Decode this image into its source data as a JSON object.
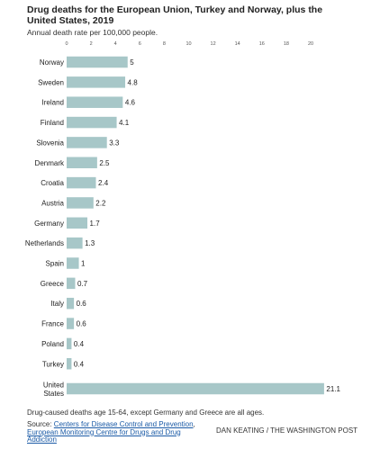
{
  "chart_data": {
    "type": "bar",
    "orientation": "horizontal",
    "title": "Drug deaths for the European Union, Turkey and Norway, plus the United States, 2019",
    "subtitle": "Annual death rate per 100,000 people.",
    "categories": [
      "Norway",
      "Sweden",
      "Ireland",
      "Finland",
      "Slovenia",
      "Denmark",
      "Croatia",
      "Austria",
      "Germany",
      "Netherlands",
      "Spain",
      "Greece",
      "Italy",
      "France",
      "Poland",
      "Turkey",
      "United States"
    ],
    "values": [
      5,
      4.8,
      4.6,
      4.1,
      3.3,
      2.5,
      2.4,
      2.2,
      1.7,
      1.3,
      1,
      0.7,
      0.6,
      0.6,
      0.4,
      0.4,
      21.1
    ],
    "data_labels": [
      "5",
      "4.8",
      "4.6",
      "4.1",
      "3.3",
      "2.5",
      "2.4",
      "2.2",
      "1.7",
      "1.3",
      "1",
      "0.7",
      "0.6",
      "0.6",
      "0.4",
      "0.4",
      "21.1"
    ],
    "xticks": [
      "0",
      "2",
      "4",
      "6",
      "8",
      "10",
      "12",
      "14",
      "16",
      "18",
      "20"
    ],
    "xlim": [
      0,
      21.1
    ],
    "grid": false,
    "legend": "none",
    "colors": {
      "bar": "#a7c7c8",
      "text": "#222222",
      "link": "#1a5aa6"
    }
  },
  "footer": {
    "note": "Drug-caused deaths age 15-64, except Germany and Greece are all ages.",
    "source_label": "Source: ",
    "source_link_1": "Centers for Disease Control and Prevention",
    "source_separator": ", ",
    "source_link_2": "European Monitoring Centre for Drugs and Drug Addiction",
    "credit": "DAN KEATING / THE WASHINGTON POST"
  }
}
